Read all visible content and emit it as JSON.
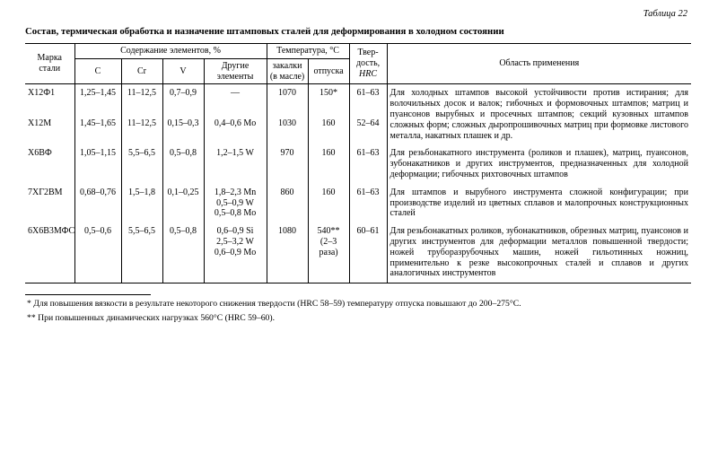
{
  "table_number": "Таблица 22",
  "caption": "Состав, термическая обработка и назначение штамповых сталей для деформирования в холодном состоянии",
  "headers": {
    "grade": "Марка стали",
    "elements_group": "Содержание элементов, %",
    "c": "C",
    "cr": "Cr",
    "v": "V",
    "other": "Другие элементы",
    "temp_group": "Температура, °C",
    "quench": "закалки (в масле)",
    "temper": "отпуска",
    "hardness_top": "Твер-дость,",
    "hardness_bot": "HRC",
    "application": "Область применения"
  },
  "colwidths": {
    "grade": "55",
    "c": "52",
    "cr": "46",
    "v": "46",
    "other": "70",
    "quench": "46",
    "temper": "46",
    "hrc": "42",
    "app": "auto"
  },
  "rows": [
    {
      "grade": "Х12Ф1",
      "c": "1,25–1,45",
      "cr": "11–12,5",
      "v": "0,7–0,9",
      "other": "—",
      "quench": "1070",
      "temper": "150*",
      "hrc": "61–63",
      "app": "Для холодных штампов высокой устойчивости против истирания; для волочильных досок и валок; гибочных и формовочных штампов; матриц и пуансонов вырубных и просечных штампов; секций кузовных штампов сложных форм; сложных дыропрошивочных матриц при формовке листового металла, накатных пла­шек и др."
    },
    {
      "grade": "Х12М",
      "c": "1,45–1,65",
      "cr": "11–12,5",
      "v": "0,15–0,3",
      "other": "0,4–0,6 Mo",
      "quench": "1030",
      "temper": "160",
      "hrc": "52–64",
      "app": ""
    },
    {
      "grade": "Х6ВФ",
      "c": "1,05–1,15",
      "cr": "5,5–6,5",
      "v": "0,5–0,8",
      "other": "1,2–1,5 W",
      "quench": "970",
      "temper": "160",
      "hrc": "61–63",
      "app": "Для резьбонакатного инструмента (роликов и плашек), матриц, пуансонов, зубонакатников и других инструментов, предназначенных для холодной деформации; гибочных рихтовочных штампов"
    },
    {
      "grade": "7ХГ2ВМ",
      "c": "0,68–0,76",
      "cr": "1,5–1,8",
      "v": "0,1–0,25",
      "other": "1,8–2,3 Mn\n0,5–0,9 W\n0,5–0,8 Mo",
      "quench": "860",
      "temper": "160",
      "hrc": "61–63",
      "app": "Для штампов и вырубного инструмента слож­ной конфигурации; при производстве изделий из цветных сплавов и малопрочных конструк­ционных сталей"
    },
    {
      "grade": "6Х6В3МФС",
      "c": "0,5–0,6",
      "cr": "5,5–6,5",
      "v": "0,5–0,8",
      "other": "0,6–0,9 Si\n2,5–3,2 W\n0,6–0,9 Mo",
      "quench": "1080",
      "temper": "540**\n(2–3 раза)",
      "hrc": "60–61",
      "app": "Для резьбонакатных роликов, зубонакатников, обрезных матриц, пуансонов и других инстру­ментов для деформации металлов повышен­ной твердости; ножей труборазрубочных машин, ножей гильотинных ножниц, применительно к резке высокопрочных сталей и сплавов и других аналогичных инструментов"
    }
  ],
  "footnote1": "* Для повышения вязкости в результате некоторого снижения твердости (HRC 58–59) температуру отпуска повышают до 200–275°C.",
  "footnote2": "** При повышенных динамических нагрузках 560°C (HRC 59–60)."
}
